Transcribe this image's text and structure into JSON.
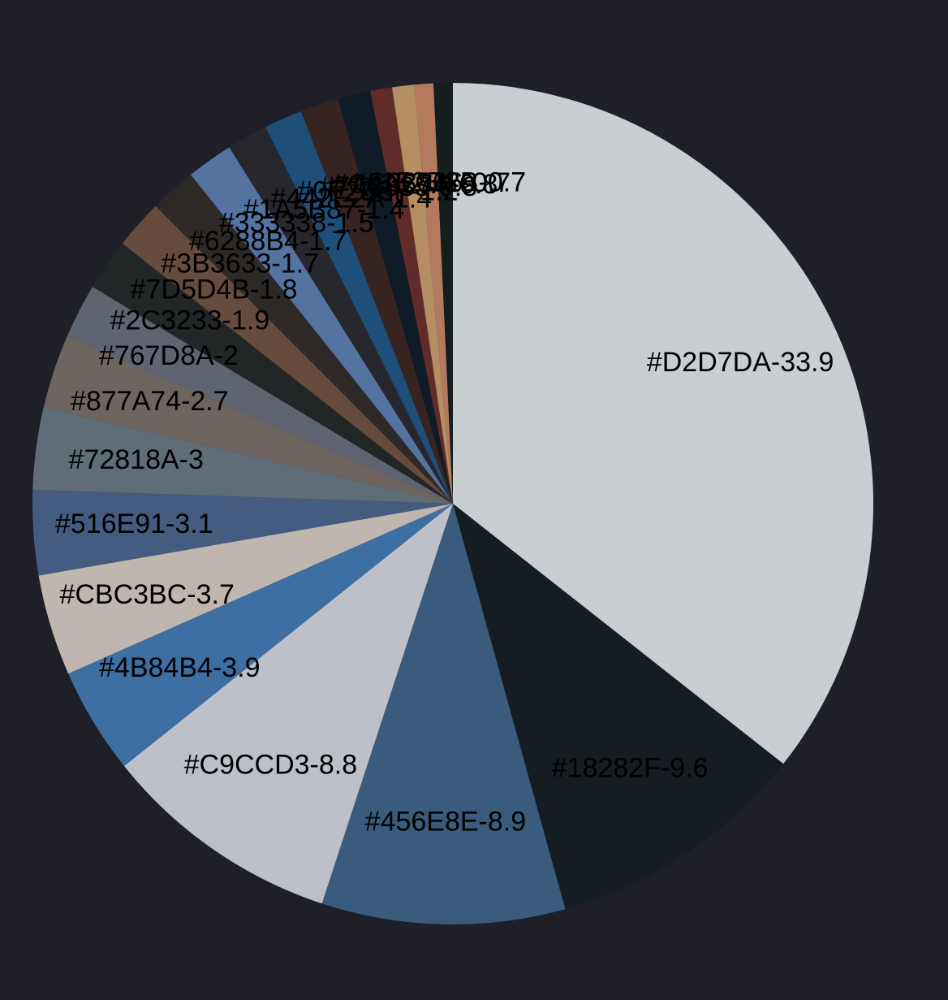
{
  "chart_data": {
    "type": "pie",
    "title": "",
    "slices": [
      {
        "label": "#D2D7DA-33.9",
        "value": 33.9,
        "color": "#C9CED2"
      },
      {
        "label": "#18282F-9.6",
        "value": 9.6,
        "color": "#151D22"
      },
      {
        "label": "#456E8E-8.9",
        "value": 8.9,
        "color": "#3A5B7B"
      },
      {
        "label": "#C9CCD3-8.8",
        "value": 8.8,
        "color": "#BDC0C9"
      },
      {
        "label": "#4B84B4-3.9",
        "value": 3.9,
        "color": "#3E6FA2"
      },
      {
        "label": "#CBC3BC-3.7",
        "value": 3.7,
        "color": "#BFB7AF"
      },
      {
        "label": "#516E91-3.1",
        "value": 3.1,
        "color": "#445C80"
      },
      {
        "label": "#72818A-3",
        "value": 3.0,
        "color": "#5F6D77"
      },
      {
        "label": "#877A74-2.7",
        "value": 2.7,
        "color": "#6E6560"
      },
      {
        "label": "#767D8A-2",
        "value": 2.0,
        "color": "#5E6571"
      },
      {
        "label": "#2C3233-1.9",
        "value": 1.9,
        "color": "#222627"
      },
      {
        "label": "#7D5D4B-1.8",
        "value": 1.8,
        "color": "#674C3D"
      },
      {
        "label": "#3B3633-1.7",
        "value": 1.7,
        "color": "#2D2926"
      },
      {
        "label": "#6288B4-1.7",
        "value": 1.7,
        "color": "#5473A1"
      },
      {
        "label": "#333338-1.5",
        "value": 1.5,
        "color": "#28272D"
      },
      {
        "label": "#1A5B87-1.4",
        "value": 1.4,
        "color": "#1E4F7A"
      },
      {
        "label": "#442E2A-1.4",
        "value": 1.4,
        "color": "#37231F"
      },
      {
        "label": "#0F2B3F-1.2",
        "value": 1.2,
        "color": "#0F1C27"
      },
      {
        "label": "#7A3835-0.8",
        "value": 0.8,
        "color": "#612B2A"
      },
      {
        "label": "#C4A67A-0.8",
        "value": 0.8,
        "color": "#B58E62"
      },
      {
        "label": "#C38866-0.7",
        "value": 0.7,
        "color": "#B37A5E"
      },
      {
        "label": "#152B2B-0.7",
        "value": 0.7,
        "color": "#131E1D"
      }
    ]
  }
}
